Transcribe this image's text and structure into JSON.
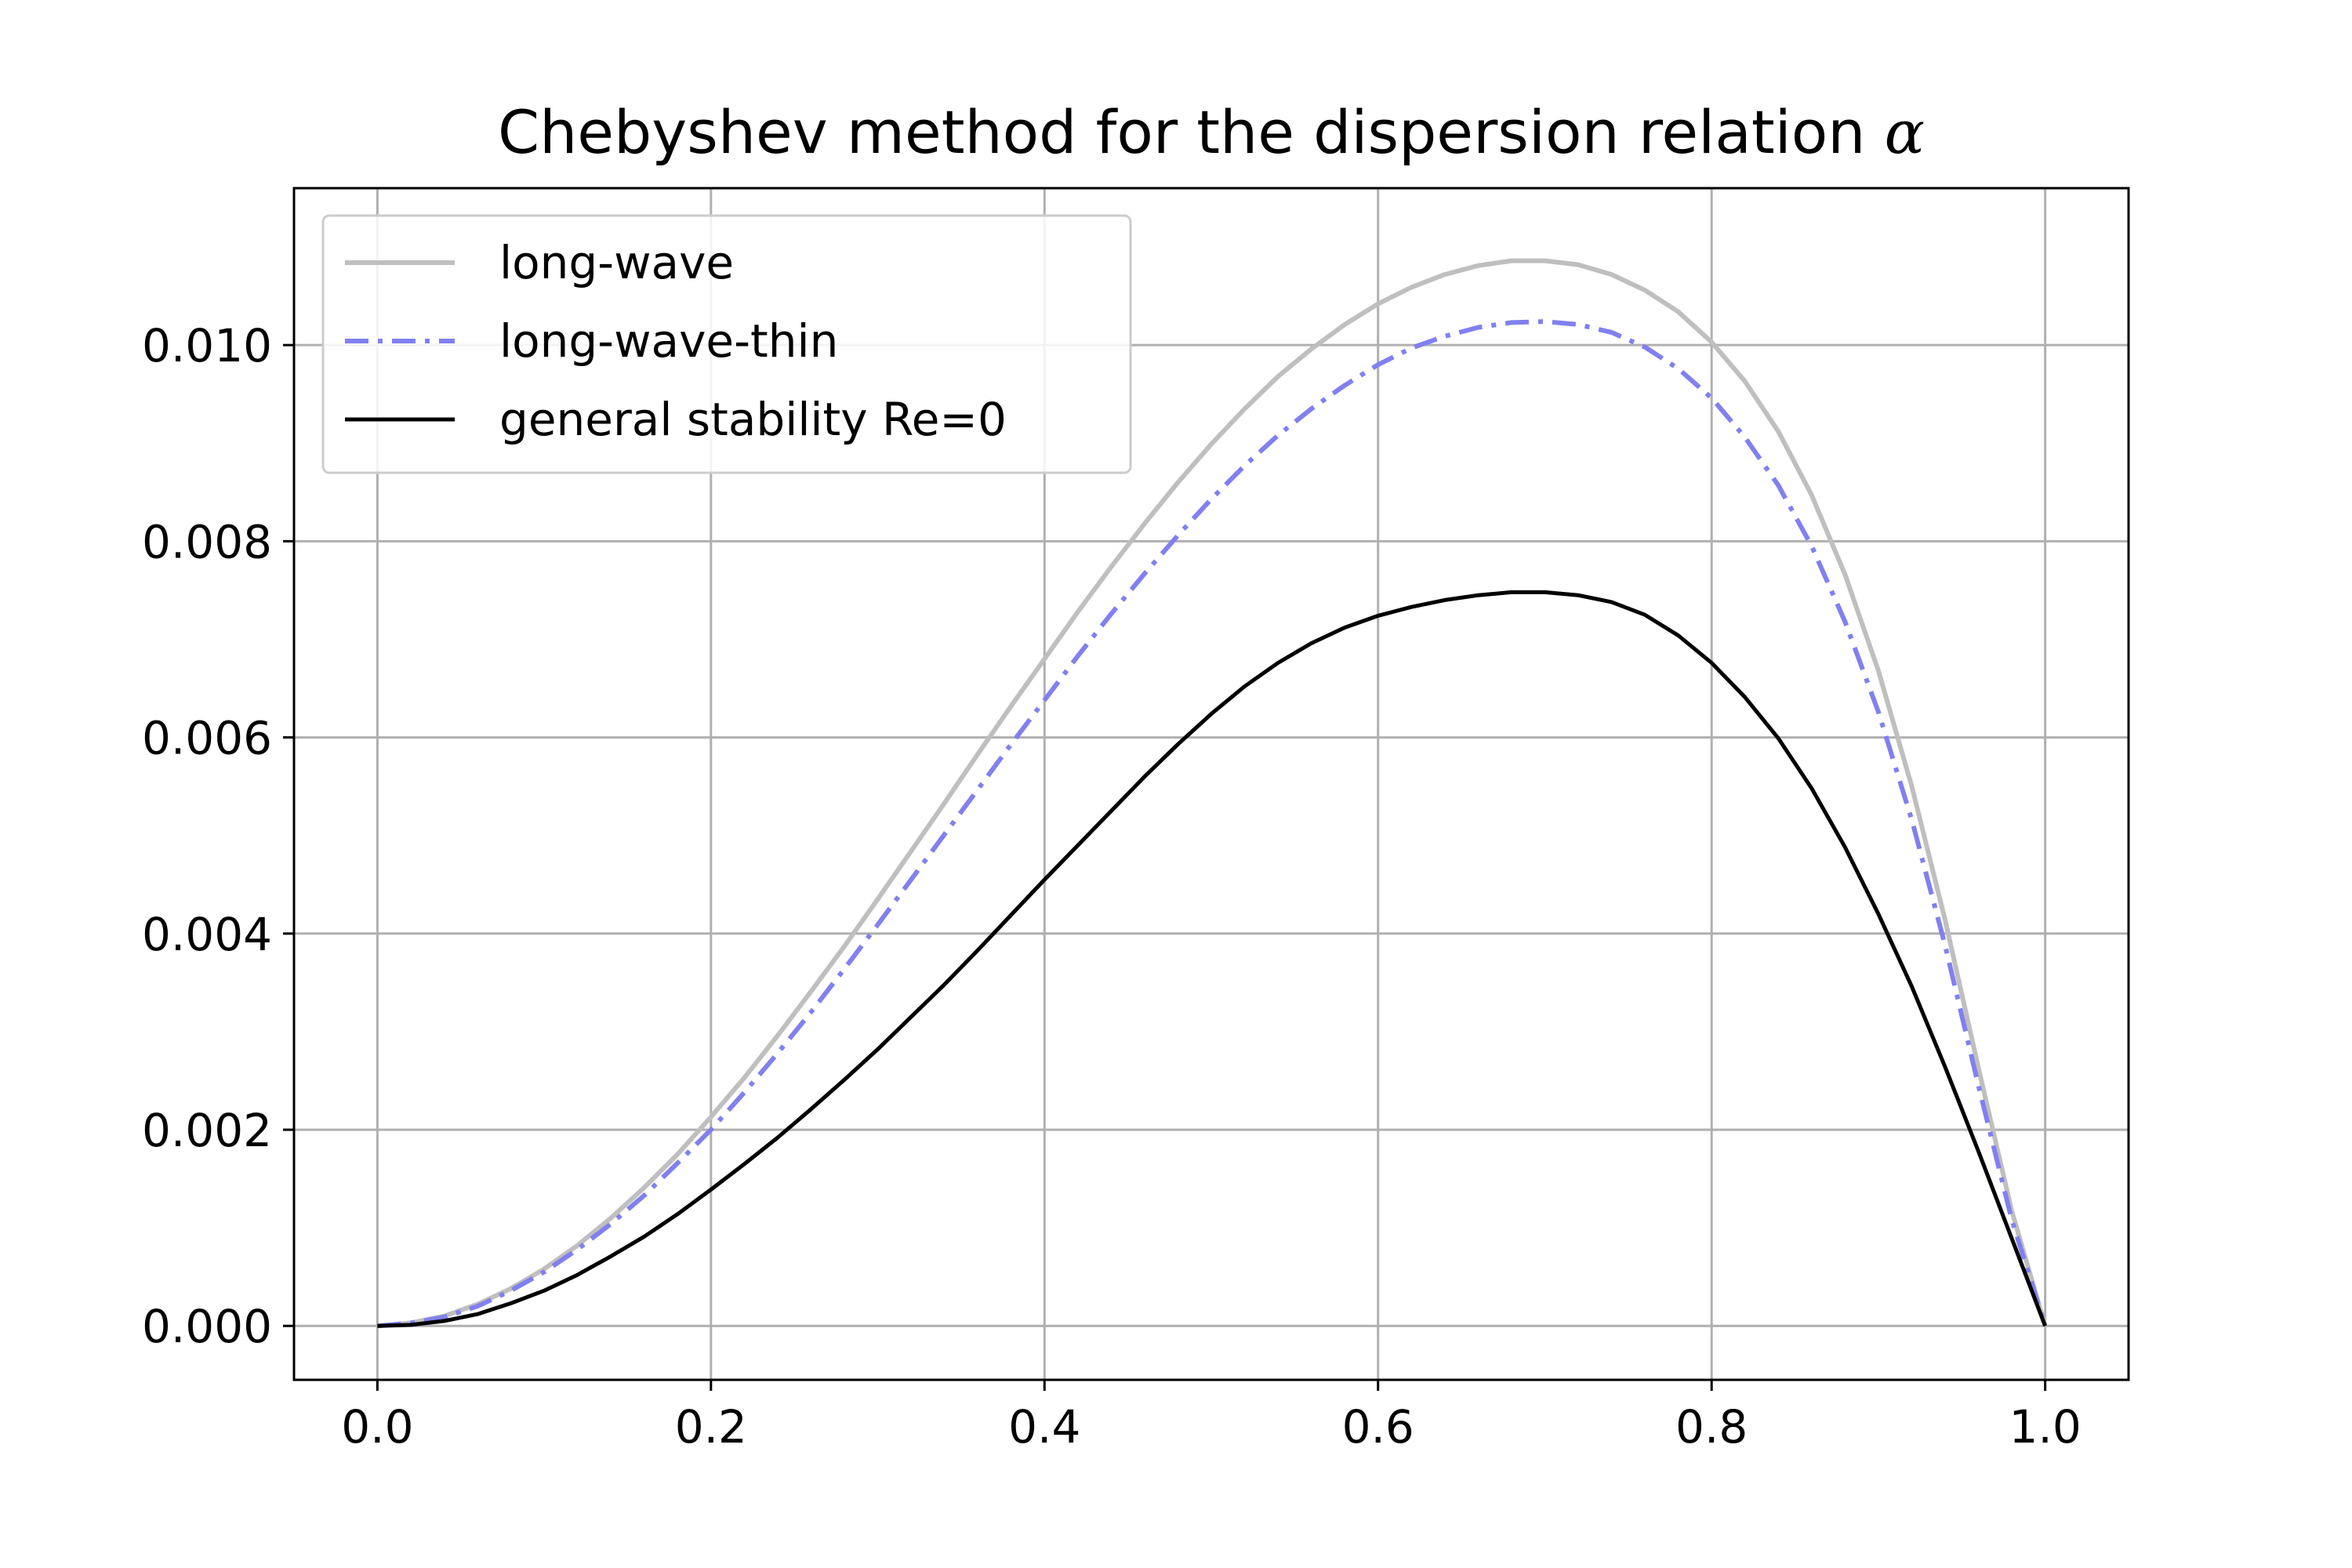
{
  "chart_data": {
    "type": "line",
    "title": "Chebyshev method for the dispersion relation ",
    "title_symbol": "α",
    "xlabel": "",
    "ylabel": "",
    "xlim": [
      -0.05,
      1.05
    ],
    "ylim": [
      -0.00055,
      0.0116
    ],
    "x_ticks": [
      0.0,
      0.2,
      0.4,
      0.6,
      0.8,
      1.0
    ],
    "x_tick_labels": [
      "0.0",
      "0.2",
      "0.4",
      "0.6",
      "0.8",
      "1.0"
    ],
    "y_ticks": [
      0.0,
      0.002,
      0.004,
      0.006,
      0.008,
      0.01
    ],
    "y_tick_labels": [
      "0.000",
      "0.002",
      "0.004",
      "0.006",
      "0.008",
      "0.010"
    ],
    "grid": true,
    "legend_position": "top-left",
    "x": [
      0.0,
      0.02,
      0.04,
      0.06,
      0.08,
      0.1,
      0.12,
      0.14,
      0.16,
      0.18,
      0.2,
      0.22,
      0.24,
      0.26,
      0.28,
      0.3,
      0.32,
      0.34,
      0.36,
      0.38,
      0.4,
      0.42,
      0.44,
      0.46,
      0.48,
      0.5,
      0.52,
      0.54,
      0.56,
      0.58,
      0.6,
      0.62,
      0.64,
      0.66,
      0.68,
      0.7,
      0.72,
      0.74,
      0.76,
      0.78,
      0.8,
      0.82,
      0.84,
      0.86,
      0.88,
      0.9,
      0.92,
      0.94,
      0.96,
      0.98,
      1.0
    ],
    "series": [
      {
        "name": "long-wave",
        "color": "#bfbfbf",
        "style": "solid",
        "values": [
          0.0,
          3e-05,
          0.0001,
          0.00022,
          0.00038,
          0.00058,
          0.00082,
          0.0011,
          0.00141,
          0.00175,
          0.00213,
          0.00253,
          0.00296,
          0.00341,
          0.00387,
          0.00435,
          0.00484,
          0.00533,
          0.00583,
          0.00632,
          0.0068,
          0.00728,
          0.00774,
          0.00818,
          0.0086,
          0.00899,
          0.00935,
          0.00968,
          0.00996,
          0.01021,
          0.01042,
          0.01059,
          0.01072,
          0.01081,
          0.01086,
          0.01086,
          0.01082,
          0.01072,
          0.01056,
          0.01034,
          0.01003,
          0.00963,
          0.00912,
          0.00847,
          0.00766,
          0.00668,
          0.0055,
          0.00414,
          0.00263,
          0.00117,
          0.0
        ]
      },
      {
        "name": "long-wave-thin",
        "color": "#8080f0",
        "style": "dashdot",
        "values": [
          0.0,
          3e-05,
          9e-05,
          0.0002,
          0.00036,
          0.00055,
          0.00078,
          0.00104,
          0.00133,
          0.00166,
          0.002,
          0.00238,
          0.00278,
          0.0032,
          0.00364,
          0.00409,
          0.00455,
          0.00501,
          0.00547,
          0.00593,
          0.00638,
          0.00683,
          0.00726,
          0.00767,
          0.00806,
          0.00843,
          0.00877,
          0.00908,
          0.00935,
          0.00959,
          0.0098,
          0.00997,
          0.01009,
          0.01018,
          0.01023,
          0.01024,
          0.01021,
          0.01013,
          0.00998,
          0.00976,
          0.00946,
          0.00906,
          0.00857,
          0.00795,
          0.00718,
          0.00626,
          0.00516,
          0.00388,
          0.00245,
          0.00108,
          0.0
        ]
      },
      {
        "name": "general stability Re=0",
        "color": "#000000",
        "style": "solid",
        "values": [
          0.0,
          1e-05,
          5e-05,
          0.00012,
          0.00023,
          0.00036,
          0.00052,
          0.00071,
          0.00091,
          0.00114,
          0.00139,
          0.00165,
          0.00192,
          0.00221,
          0.00251,
          0.00282,
          0.00315,
          0.00348,
          0.00383,
          0.00419,
          0.00455,
          0.0049,
          0.00525,
          0.0056,
          0.00593,
          0.00624,
          0.00652,
          0.00676,
          0.00696,
          0.00712,
          0.00724,
          0.00733,
          0.0074,
          0.00745,
          0.00748,
          0.00748,
          0.00745,
          0.00738,
          0.00725,
          0.00704,
          0.00676,
          0.00641,
          0.00599,
          0.00548,
          0.00488,
          0.0042,
          0.00346,
          0.00264,
          0.00178,
          0.00089,
          0.0
        ]
      }
    ]
  }
}
